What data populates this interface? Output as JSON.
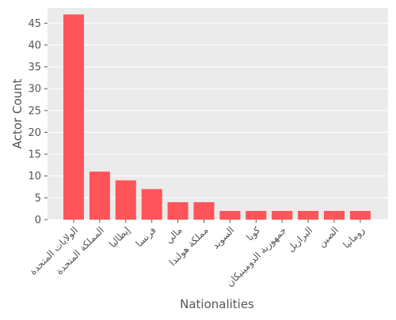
{
  "chart_data": {
    "type": "bar",
    "title": "",
    "xlabel": "Nationalities",
    "ylabel": "Actor Count",
    "ylim": [
      0,
      48.5
    ],
    "yticks": [
      0,
      5,
      10,
      15,
      20,
      25,
      30,
      35,
      40,
      45
    ],
    "grid": true,
    "categories": [
      "الولايات المتحدة",
      "المملكة المتحدة",
      "إيطاليا",
      "فرنسا",
      "مالي",
      "مملكة هولندا",
      "السويد",
      "كوبا",
      "جمهورية الدومينيكان",
      "البرازيل",
      "الصين",
      "رومانيا"
    ],
    "values": [
      47,
      11,
      9,
      7,
      4,
      4,
      2,
      2,
      2,
      2,
      2,
      2
    ],
    "colors": {
      "bar": "#ff5459",
      "plot_background": "#ebebeb",
      "grid": "#ffffff",
      "text": "#555555"
    }
  }
}
